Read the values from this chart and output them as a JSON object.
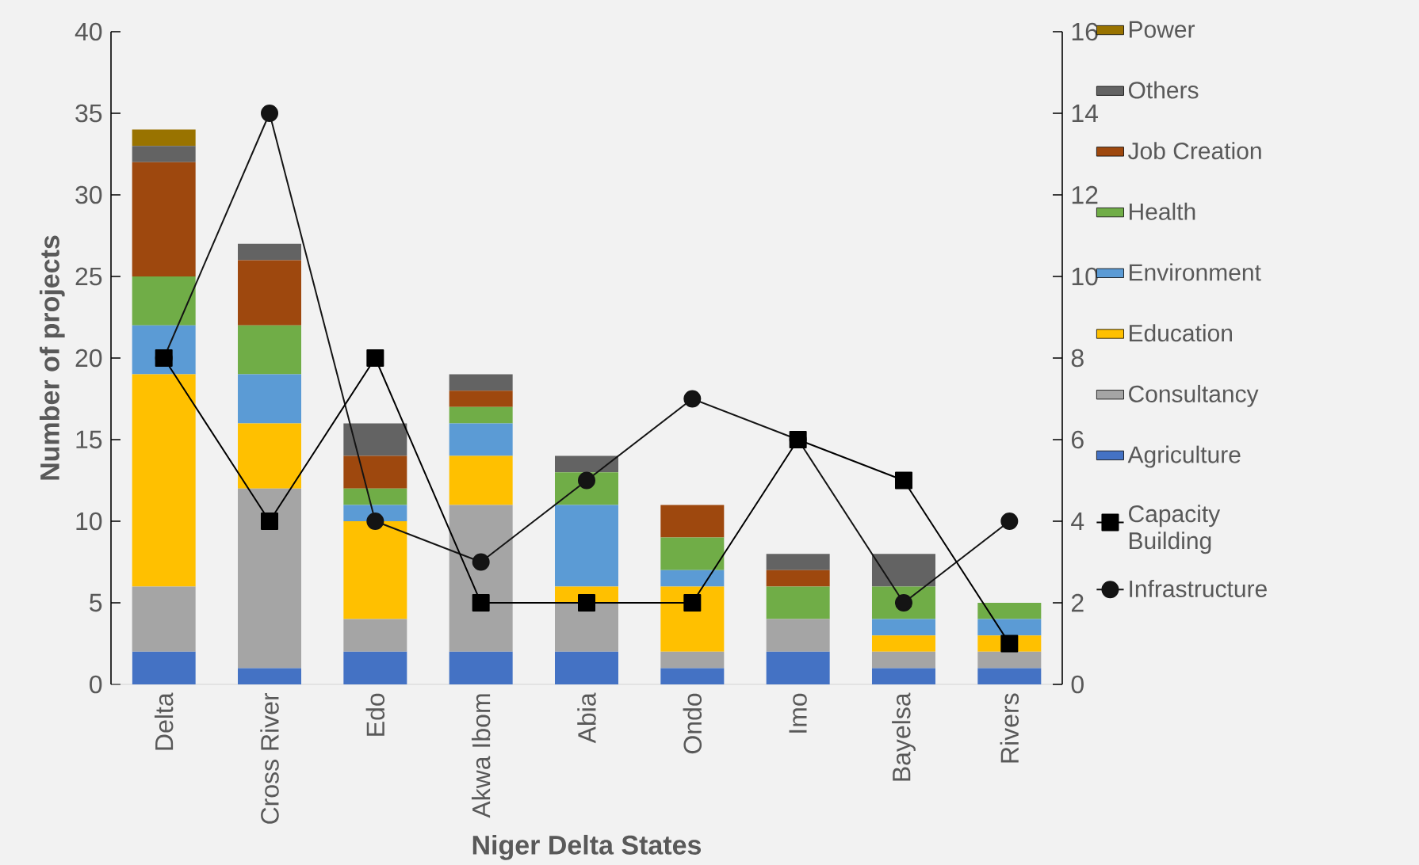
{
  "chart_data": {
    "type": "bar",
    "stacked": true,
    "xlabel": "Niger Delta States",
    "ylabel": "Number of projects",
    "categories": [
      "Delta",
      "Cross River",
      "Edo",
      "Akwa Ibom",
      "Abia",
      "Ondo",
      "Imo",
      "Bayelsa",
      "Rivers"
    ],
    "ylim": [
      0,
      40
    ],
    "yticks": [
      0,
      5,
      10,
      15,
      20,
      25,
      30,
      35,
      40
    ],
    "y2lim": [
      0,
      16
    ],
    "y2ticks": [
      0,
      2,
      4,
      6,
      8,
      10,
      12,
      14,
      16
    ],
    "legend": "right",
    "series": [
      {
        "name": "Agriculture",
        "color": "#4472c4",
        "values": [
          2,
          1,
          2,
          2,
          2,
          1,
          2,
          1,
          1
        ]
      },
      {
        "name": "Consultancy",
        "color": "#a5a5a5",
        "values": [
          4,
          11,
          2,
          9,
          3,
          1,
          2,
          1,
          1
        ]
      },
      {
        "name": "Education",
        "color": "#ffc000",
        "values": [
          13,
          4,
          6,
          3,
          1,
          4,
          0,
          1,
          1
        ]
      },
      {
        "name": "Environment",
        "color": "#5b9bd5",
        "values": [
          3,
          3,
          1,
          2,
          5,
          1,
          0,
          1,
          1
        ]
      },
      {
        "name": "Health",
        "color": "#70ad47",
        "values": [
          3,
          3,
          1,
          1,
          2,
          2,
          2,
          2,
          1
        ]
      },
      {
        "name": "Job Creation",
        "color": "#9e480e",
        "values": [
          7,
          4,
          2,
          1,
          0,
          2,
          1,
          0,
          0
        ]
      },
      {
        "name": "Others",
        "color": "#636363",
        "values": [
          1,
          1,
          2,
          1,
          1,
          0,
          1,
          2,
          0
        ]
      },
      {
        "name": "Power",
        "color": "#997300",
        "values": [
          1,
          0,
          0,
          0,
          0,
          0,
          0,
          0,
          0
        ]
      },
      {
        "name": "Capacity Building",
        "type": "line",
        "axis": "y2",
        "marker": "square",
        "color": "#000000",
        "values": [
          8,
          4,
          8,
          2,
          2,
          2,
          6,
          5,
          1
        ]
      },
      {
        "name": "Infrastructure",
        "type": "line",
        "axis": "y2",
        "marker": "circle",
        "color": "#141414",
        "values": [
          8,
          14,
          4,
          3,
          5,
          7,
          6,
          2,
          4
        ]
      }
    ]
  }
}
